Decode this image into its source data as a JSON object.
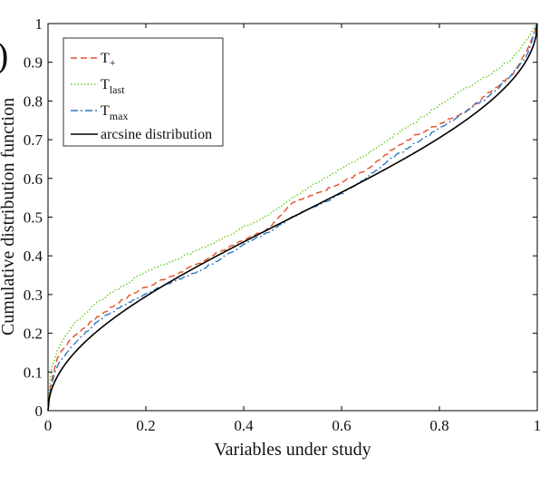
{
  "chart_data": {
    "type": "line",
    "title": "",
    "panel_label": ")",
    "xlabel": "Variables under study",
    "ylabel": "Cumulative distribution function",
    "xlim": [
      0,
      1
    ],
    "ylim": [
      0,
      1
    ],
    "xticks": [
      "0",
      "0.2",
      "0.4",
      "0.6",
      "0.8",
      "1"
    ],
    "yticks": [
      "0",
      "0.1",
      "0.2",
      "0.3",
      "0.4",
      "0.5",
      "0.6",
      "0.7",
      "0.8",
      "0.9",
      "1"
    ],
    "grid": false,
    "legend_position": "top-left",
    "series": [
      {
        "name": "T+",
        "label_main": "T",
        "label_sub": "+",
        "sub_style": "plain",
        "color": "#e0522b",
        "style": "dashed",
        "x": [
          0,
          0.005,
          0.02,
          0.05,
          0.1,
          0.15,
          0.2,
          0.25,
          0.3,
          0.35,
          0.4,
          0.45,
          0.5,
          0.55,
          0.6,
          0.65,
          0.7,
          0.75,
          0.8,
          0.85,
          0.9,
          0.95,
          0.98,
          1
        ],
        "y": [
          0,
          0.07,
          0.14,
          0.19,
          0.24,
          0.285,
          0.32,
          0.345,
          0.375,
          0.41,
          0.44,
          0.47,
          0.54,
          0.56,
          0.59,
          0.62,
          0.67,
          0.71,
          0.74,
          0.77,
          0.82,
          0.87,
          0.93,
          1
        ]
      },
      {
        "name": "Tlast",
        "label_main": "T",
        "label_sub": "last",
        "sub_style": "sub",
        "color": "#66cc22",
        "style": "dotted",
        "x": [
          0,
          0.005,
          0.02,
          0.05,
          0.1,
          0.15,
          0.2,
          0.25,
          0.3,
          0.35,
          0.4,
          0.45,
          0.5,
          0.55,
          0.6,
          0.65,
          0.7,
          0.75,
          0.8,
          0.85,
          0.9,
          0.95,
          0.98,
          1
        ],
        "y": [
          0,
          0.1,
          0.16,
          0.22,
          0.28,
          0.32,
          0.36,
          0.385,
          0.41,
          0.44,
          0.475,
          0.505,
          0.55,
          0.59,
          0.625,
          0.66,
          0.705,
          0.745,
          0.79,
          0.83,
          0.865,
          0.91,
          0.96,
          1
        ]
      },
      {
        "name": "Tmax",
        "label_main": "T",
        "label_sub": "max",
        "sub_style": "sub",
        "color": "#2f77c0",
        "style": "dashdot",
        "x": [
          0,
          0.005,
          0.02,
          0.05,
          0.1,
          0.15,
          0.2,
          0.25,
          0.3,
          0.35,
          0.4,
          0.45,
          0.5,
          0.55,
          0.6,
          0.65,
          0.7,
          0.75,
          0.8,
          0.85,
          0.9,
          0.95,
          0.98,
          1
        ],
        "y": [
          0,
          0.06,
          0.12,
          0.17,
          0.23,
          0.27,
          0.3,
          0.33,
          0.355,
          0.39,
          0.43,
          0.46,
          0.5,
          0.53,
          0.56,
          0.6,
          0.65,
          0.69,
          0.73,
          0.77,
          0.81,
          0.87,
          0.92,
          1
        ]
      },
      {
        "name": "arcsine distribution",
        "label_main": "arcsine distribution",
        "label_sub": "",
        "sub_style": "none",
        "color": "#000000",
        "style": "solid",
        "function": "arcsine",
        "x": [
          0,
          0.001,
          0.01,
          0.05,
          0.1,
          0.2,
          0.3,
          0.4,
          0.5,
          0.6,
          0.7,
          0.8,
          0.9,
          0.95,
          0.99,
          0.999,
          1
        ],
        "y": [
          0,
          0.02,
          0.064,
          0.144,
          0.205,
          0.295,
          0.369,
          0.436,
          0.5,
          0.564,
          0.631,
          0.705,
          0.795,
          0.856,
          0.936,
          0.98,
          1
        ]
      }
    ]
  }
}
